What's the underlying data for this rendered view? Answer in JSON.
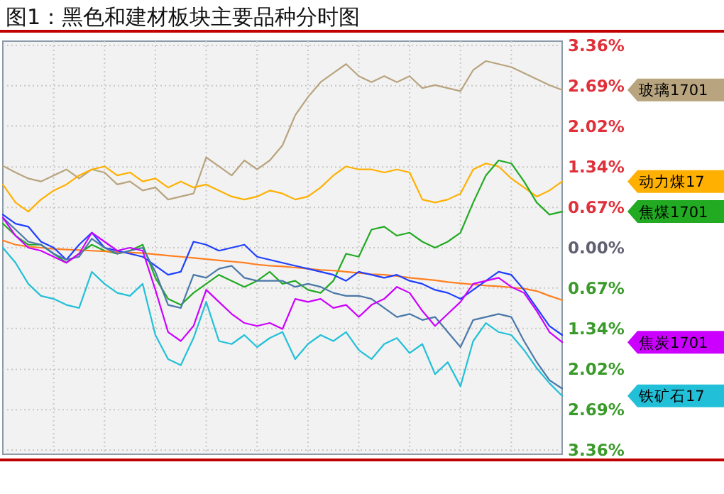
{
  "chart_data": {
    "type": "line",
    "title": "图1：黑色和建材板块主要品种分时图",
    "categories": [
      null,
      null,
      null,
      null,
      null,
      null,
      null,
      null,
      null,
      null,
      null,
      null,
      null,
      null,
      null,
      null,
      null,
      null,
      null,
      null,
      null,
      null,
      null,
      null,
      null,
      null,
      null,
      null,
      null,
      null,
      null,
      null,
      null,
      null,
      null,
      null,
      null,
      null,
      null,
      null,
      null,
      null,
      null,
      null,
      null
    ],
    "ylim": [
      -3.43,
      3.43
    ],
    "yticks": [
      {
        "value": 3.36,
        "label": "3.36%"
      },
      {
        "value": 2.69,
        "label": "2.69%"
      },
      {
        "value": 2.02,
        "label": "2.02%"
      },
      {
        "value": 1.34,
        "label": "1.34%"
      },
      {
        "value": 0.67,
        "label": "0.67%"
      },
      {
        "value": 0,
        "label": "0.00%"
      },
      {
        "value": -0.67,
        "label": "0.67%"
      },
      {
        "value": -1.34,
        "label": "1.34%"
      },
      {
        "value": -2.02,
        "label": "2.02%"
      },
      {
        "value": -2.69,
        "label": "2.69%"
      },
      {
        "value": -3.36,
        "label": "3.36%"
      }
    ],
    "grid": true,
    "series": [
      {
        "name": "玻璃1701",
        "color": "#b8a47e",
        "values": [
          1.36,
          1.25,
          1.15,
          1.1,
          1.2,
          1.3,
          1.15,
          1.3,
          1.25,
          1.05,
          1.1,
          0.95,
          1.0,
          0.8,
          0.85,
          0.9,
          1.5,
          1.35,
          1.2,
          1.45,
          1.3,
          1.45,
          1.7,
          2.2,
          2.5,
          2.75,
          2.9,
          3.05,
          2.85,
          2.75,
          2.85,
          2.75,
          2.85,
          2.65,
          2.7,
          2.65,
          2.6,
          2.95,
          3.1,
          3.05,
          3.0,
          2.9,
          2.8,
          2.7,
          2.62
        ]
      },
      {
        "name": "动力煤17",
        "color": "#ffb000",
        "values": [
          1.05,
          0.75,
          0.6,
          0.8,
          0.95,
          1.05,
          1.2,
          1.3,
          1.35,
          1.2,
          1.25,
          1.1,
          1.15,
          1.0,
          1.1,
          1.0,
          1.05,
          0.95,
          0.85,
          0.8,
          0.85,
          0.95,
          0.9,
          0.8,
          0.85,
          1.0,
          1.2,
          1.35,
          1.3,
          1.3,
          1.25,
          1.3,
          1.25,
          0.8,
          0.75,
          0.8,
          0.9,
          1.3,
          1.4,
          1.35,
          1.15,
          1.0,
          0.85,
          0.95,
          1.1
        ]
      },
      {
        "name": "焦煤1701",
        "color": "#22aa22",
        "values": [
          0.4,
          0.2,
          0.05,
          0.05,
          -0.1,
          -0.25,
          -0.1,
          0.05,
          -0.05,
          -0.1,
          -0.05,
          0.05,
          -0.5,
          -0.85,
          -0.95,
          -0.75,
          -0.6,
          -0.45,
          -0.55,
          -0.65,
          -0.55,
          -0.4,
          -0.6,
          -0.55,
          -0.7,
          -0.75,
          -0.55,
          -0.1,
          -0.15,
          0.3,
          0.35,
          0.2,
          0.25,
          0.1,
          0.0,
          0.1,
          0.25,
          0.75,
          1.2,
          1.45,
          1.4,
          1.1,
          0.75,
          0.55,
          0.6
        ]
      },
      {
        "color": "#ff8020",
        "values": [
          0.12,
          0.05,
          0.02,
          0.0,
          -0.02,
          -0.03,
          -0.04,
          -0.05,
          -0.06,
          -0.07,
          -0.08,
          -0.09,
          -0.11,
          -0.13,
          -0.15,
          -0.17,
          -0.19,
          -0.21,
          -0.23,
          -0.25,
          -0.28,
          -0.3,
          -0.31,
          -0.33,
          -0.35,
          -0.37,
          -0.38,
          -0.4,
          -0.42,
          -0.44,
          -0.45,
          -0.47,
          -0.5,
          -0.52,
          -0.54,
          -0.57,
          -0.59,
          -0.61,
          -0.63,
          -0.64,
          -0.66,
          -0.68,
          -0.72,
          -0.8,
          -0.87
        ]
      },
      {
        "color": "#1f3fff",
        "values": [
          0.55,
          0.4,
          0.35,
          0.1,
          0.0,
          -0.2,
          0.05,
          0.25,
          0.0,
          -0.05,
          -0.1,
          -0.15,
          -0.3,
          -0.45,
          -0.4,
          0.1,
          0.05,
          -0.05,
          0.0,
          0.05,
          -0.15,
          -0.2,
          -0.25,
          -0.3,
          -0.35,
          -0.4,
          -0.45,
          -0.55,
          -0.4,
          -0.45,
          -0.5,
          -0.45,
          -0.55,
          -0.6,
          -0.7,
          -0.75,
          -0.85,
          -0.7,
          -0.55,
          -0.4,
          -0.45,
          -0.7,
          -1.0,
          -1.3,
          -1.45
        ]
      },
      {
        "color": "#4a78a8",
        "values": [
          0.5,
          0.3,
          0.1,
          0.05,
          -0.1,
          -0.2,
          -0.15,
          0.15,
          0.0,
          -0.1,
          -0.05,
          0.0,
          -0.4,
          -0.95,
          -1.0,
          -0.45,
          -0.5,
          -0.35,
          -0.3,
          -0.5,
          -0.55,
          -0.55,
          -0.55,
          -0.65,
          -0.6,
          -0.65,
          -0.75,
          -0.8,
          -0.8,
          -0.85,
          -1.0,
          -1.15,
          -1.1,
          -1.2,
          -1.15,
          -1.4,
          -1.65,
          -1.2,
          -1.15,
          -1.1,
          -1.15,
          -1.55,
          -1.9,
          -2.2,
          -2.34
        ]
      },
      {
        "name": "焦炭1701",
        "color": "#cc00ff",
        "values": [
          0.5,
          0.2,
          0.0,
          -0.05,
          -0.15,
          -0.25,
          -0.1,
          0.25,
          0.1,
          -0.05,
          0.0,
          -0.05,
          -0.7,
          -1.4,
          -1.55,
          -1.3,
          -0.7,
          -0.9,
          -1.1,
          -1.25,
          -1.3,
          -1.25,
          -1.35,
          -0.85,
          -0.9,
          -0.85,
          -1.0,
          -0.95,
          -1.15,
          -0.95,
          -0.85,
          -0.65,
          -0.75,
          -1.05,
          -1.3,
          -1.1,
          -0.9,
          -0.6,
          -0.55,
          -0.5,
          -0.65,
          -0.75,
          -1.05,
          -1.4,
          -1.57
        ]
      },
      {
        "name": "铁矿石17",
        "color": "#22c0d8",
        "values": [
          0.0,
          -0.25,
          -0.6,
          -0.8,
          -0.85,
          -0.95,
          -1.0,
          -0.4,
          -0.6,
          -0.75,
          -0.8,
          -0.6,
          -1.45,
          -1.85,
          -1.95,
          -1.5,
          -0.9,
          -1.55,
          -1.6,
          -1.45,
          -1.65,
          -1.5,
          -1.4,
          -1.85,
          -1.6,
          -1.45,
          -1.55,
          -1.4,
          -1.7,
          -1.85,
          -1.6,
          -1.5,
          -1.75,
          -1.6,
          -2.1,
          -1.9,
          -2.3,
          -1.55,
          -1.25,
          -1.4,
          -1.45,
          -1.7,
          -2.0,
          -2.25,
          -2.46
        ]
      }
    ]
  }
}
